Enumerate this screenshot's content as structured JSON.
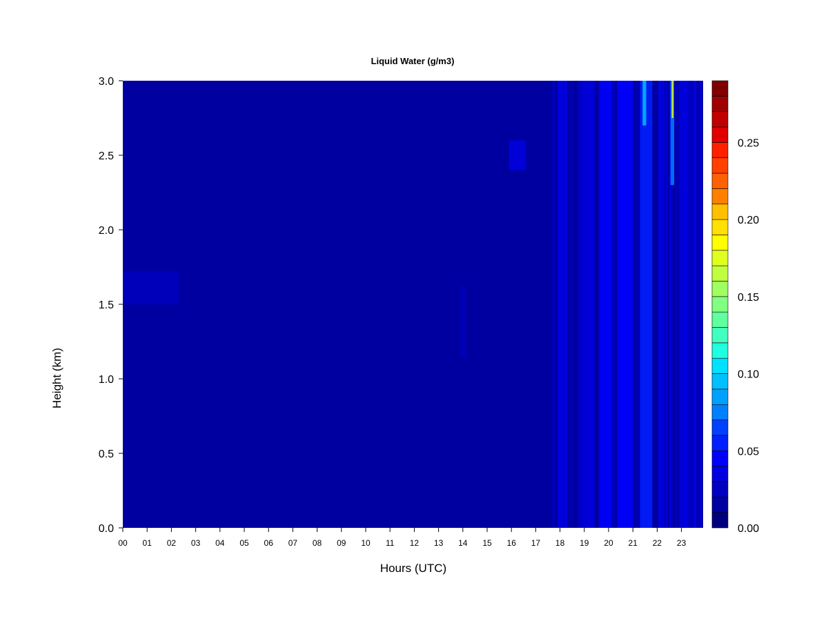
{
  "chart_data": {
    "type": "heatmap",
    "title": "Liquid Water (g/m3)",
    "xlabel": "Hours (UTC)",
    "ylabel": "Height (km)",
    "x_ticks": [
      "00",
      "01",
      "02",
      "03",
      "04",
      "05",
      "06",
      "07",
      "08",
      "09",
      "10",
      "11",
      "12",
      "13",
      "14",
      "15",
      "16",
      "17",
      "18",
      "19",
      "20",
      "21",
      "22",
      "23"
    ],
    "y_ticks": [
      "0.0",
      "0.5",
      "1.0",
      "1.5",
      "2.0",
      "2.5",
      "3.0"
    ],
    "xlim": [
      0,
      23.9
    ],
    "ylim": [
      0,
      3.0
    ],
    "colorbar": {
      "range": [
        0,
        0.29
      ],
      "ticks": [
        "0.00",
        "0.05",
        "0.10",
        "0.15",
        "0.20",
        "0.25"
      ],
      "levels": 29,
      "colors": [
        "#00007f",
        "#0000a0",
        "#0000c0",
        "#0000e0",
        "#0000ff",
        "#0020ff",
        "#0040ff",
        "#0060ff",
        "#0080ff",
        "#00a0ff",
        "#00c0ff",
        "#00e0ff",
        "#20ffdf",
        "#40ffbf",
        "#60ff9f",
        "#80ff80",
        "#9fff60",
        "#bfff40",
        "#dfff20",
        "#ffff00",
        "#ffe000",
        "#ffc000",
        "#ffa000",
        "#ff8000",
        "#ff6000",
        "#ff4000",
        "#ff2000",
        "#e00000",
        "#c00000",
        "#a00000",
        "#7f0000"
      ]
    },
    "background_value": 0.005,
    "features": [
      {
        "hours": [
          0.0,
          2.3
        ],
        "height": [
          1.5,
          1.72
        ],
        "value": 0.02
      },
      {
        "hours": [
          13.9,
          14.1
        ],
        "height": [
          1.15,
          1.62
        ],
        "value": 0.02
      },
      {
        "hours": [
          15.9,
          16.6
        ],
        "height": [
          2.4,
          2.6
        ],
        "value": 0.025
      },
      {
        "hours": [
          17.9,
          18.3
        ],
        "height": [
          0.0,
          3.0
        ],
        "value": 0.025
      },
      {
        "hours": [
          18.9,
          19.4
        ],
        "height": [
          0.0,
          3.0
        ],
        "value": 0.03
      },
      {
        "hours": [
          19.6,
          20.1
        ],
        "height": [
          0.0,
          3.0
        ],
        "value": 0.035
      },
      {
        "hours": [
          20.4,
          21.0
        ],
        "height": [
          0.0,
          3.0
        ],
        "value": 0.04
      },
      {
        "hours": [
          21.3,
          21.8
        ],
        "height": [
          0.0,
          3.0
        ],
        "value": 0.05
      },
      {
        "hours": [
          21.4,
          21.55
        ],
        "height": [
          2.7,
          3.0
        ],
        "value": 0.1
      },
      {
        "hours": [
          22.55,
          22.7
        ],
        "height": [
          2.3,
          3.0
        ],
        "value": 0.08
      },
      {
        "hours": [
          22.6,
          22.67
        ],
        "height": [
          2.75,
          3.0
        ],
        "value": 0.17
      },
      {
        "hours": [
          22.9,
          23.3
        ],
        "height": [
          0.0,
          3.0
        ],
        "value": 0.025
      }
    ]
  }
}
